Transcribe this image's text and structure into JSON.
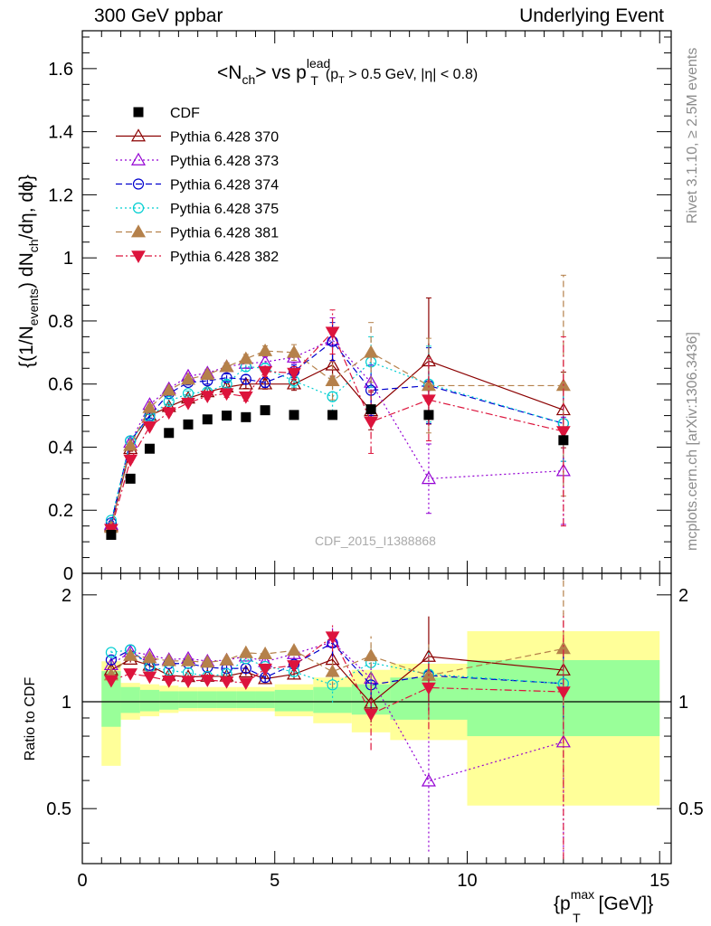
{
  "header": {
    "left": "300 GeV ppbar",
    "right": "Underlying Event"
  },
  "side": {
    "rivet": "Rivet 3.1.10, ≥ 2.5M events",
    "mcplots": "mcplots.cern.ch [arXiv:1306.3436]"
  },
  "chart_data": {
    "type": "scatter",
    "title_main": "<N",
    "title_full": "<Nch> vs pT lead (pT > 0.5 GeV, |η| < 0.8)",
    "title_parts": {
      "a": "<N",
      "sub_ch": "ch",
      "b": "> vs p",
      "sup_lead": "lead",
      "sub_T": "T",
      "c": "(p",
      "d": " > 0.5 GeV, |η| < 0.8)"
    },
    "ylabel": "{(1/Nevents) dNch/dη, dϕ}",
    "ylabel_parts": {
      "a": "{(1/N",
      "sub_events": "events",
      "b": ") dN",
      "sub_ch": "ch",
      "c": "/dη, dϕ}"
    },
    "xlabel": "{pT max [GeV]}",
    "xlabel_parts": {
      "a": "{p",
      "sup_max": "max",
      "sub_T": "T",
      "b": " [GeV]}"
    },
    "ratio_ylabel": "Ratio to CDF",
    "watermark": "CDF_2015_I1388868",
    "xlim": [
      0,
      15.3
    ],
    "ylim": [
      0,
      1.72
    ],
    "ratio_ylim": [
      0.35,
      2.3
    ],
    "ratio_log": true,
    "x_ticks": [
      0,
      5,
      10,
      15
    ],
    "y_ticks": [
      0.2,
      0.4,
      0.6,
      0.8,
      1,
      1.2,
      1.4,
      1.6
    ],
    "y_ticks_visible": [
      "0",
      "0.2",
      "0.4",
      "0.6",
      "0.8",
      "1",
      "1.2",
      "1.4",
      "1.6"
    ],
    "ratio_ticks": [
      0.5,
      1,
      2
    ],
    "legend_position": "top-left",
    "x": [
      0.75,
      1.25,
      1.75,
      2.25,
      2.75,
      3.25,
      3.75,
      4.25,
      4.75,
      5.5,
      6.5,
      7.5,
      9.0,
      12.5
    ],
    "data": {
      "name": "CDF",
      "values": [
        0.122,
        0.3,
        0.395,
        0.445,
        0.472,
        0.488,
        0.5,
        0.495,
        0.517,
        0.502,
        0.502,
        0.52,
        0.502,
        0.422
      ]
    },
    "band_edges": [
      0.5,
      1.0,
      1.5,
      2.0,
      2.5,
      3.0,
      3.5,
      4.0,
      4.5,
      5.0,
      6.0,
      7.0,
      8.0,
      10.0,
      15.0
    ],
    "band_inner": [
      [
        0.85,
        1.22
      ],
      [
        0.93,
        1.1
      ],
      [
        0.94,
        1.08
      ],
      [
        0.95,
        1.07
      ],
      [
        0.96,
        1.07
      ],
      [
        0.96,
        1.07
      ],
      [
        0.96,
        1.07
      ],
      [
        0.96,
        1.07
      ],
      [
        0.96,
        1.07
      ],
      [
        0.94,
        1.08
      ],
      [
        0.93,
        1.1
      ],
      [
        0.92,
        1.12
      ],
      [
        0.89,
        1.17
      ],
      [
        0.8,
        1.31
      ]
    ],
    "band_outer": [
      [
        0.66,
        1.3
      ],
      [
        0.89,
        1.13
      ],
      [
        0.91,
        1.12
      ],
      [
        0.93,
        1.11
      ],
      [
        0.94,
        1.1
      ],
      [
        0.94,
        1.1
      ],
      [
        0.94,
        1.1
      ],
      [
        0.94,
        1.1
      ],
      [
        0.94,
        1.1
      ],
      [
        0.91,
        1.12
      ],
      [
        0.87,
        1.17
      ],
      [
        0.82,
        1.23
      ],
      [
        0.78,
        1.28
      ],
      [
        0.51,
        1.58
      ]
    ],
    "series": [
      {
        "name": "Pythia 6.428 370",
        "color": "#8b0000",
        "dash": "",
        "marker": "tri-open",
        "values": [
          0.15,
          0.395,
          0.5,
          0.528,
          0.555,
          0.575,
          0.59,
          0.6,
          0.6,
          0.6,
          0.66,
          0.515,
          0.673,
          0.518
        ],
        "errors": [
          0.005,
          0.008,
          0.008,
          0.008,
          0.008,
          0.01,
          0.012,
          0.014,
          0.016,
          0.02,
          0.035,
          0.06,
          0.2,
          0.12
        ]
      },
      {
        "name": "Pythia 6.428 373",
        "color": "#9400d3",
        "dash": "2,3",
        "marker": "tri-open",
        "values": [
          0.155,
          0.415,
          0.535,
          0.585,
          0.625,
          0.635,
          0.655,
          0.665,
          0.67,
          0.685,
          0.74,
          0.605,
          0.3,
          0.325
        ],
        "errors": [
          0.005,
          0.008,
          0.008,
          0.008,
          0.008,
          0.01,
          0.012,
          0.014,
          0.016,
          0.02,
          0.07,
          0.1,
          0.11,
          0.17
        ]
      },
      {
        "name": "Pythia 6.428 374",
        "color": "#0000cd",
        "dash": "7,4",
        "marker": "circ-open",
        "values": [
          0.16,
          0.42,
          0.5,
          0.57,
          0.605,
          0.61,
          0.62,
          0.615,
          0.605,
          0.64,
          0.735,
          0.58,
          0.595,
          0.475
        ],
        "errors": [
          0.005,
          0.008,
          0.008,
          0.008,
          0.008,
          0.01,
          0.012,
          0.014,
          0.016,
          0.02,
          0.06,
          0.08,
          0.12,
          0.12
        ]
      },
      {
        "name": "Pythia 6.428 375",
        "color": "#00ced1",
        "dash": "2,3",
        "marker": "circ-open",
        "values": [
          0.168,
          0.42,
          0.495,
          0.545,
          0.57,
          0.575,
          0.6,
          0.655,
          0.65,
          0.61,
          0.56,
          0.67,
          0.6,
          0.475
        ],
        "errors": [
          0.005,
          0.008,
          0.008,
          0.008,
          0.008,
          0.01,
          0.012,
          0.014,
          0.016,
          0.02,
          0.06,
          0.08,
          0.12,
          0.12
        ]
      },
      {
        "name": "Pythia 6.428 381",
        "color": "#b5814b",
        "dash": "7,4",
        "marker": "tri-fill",
        "values": [
          0.145,
          0.405,
          0.525,
          0.58,
          0.615,
          0.63,
          0.655,
          0.68,
          0.705,
          0.7,
          0.61,
          0.7,
          0.595,
          0.595
        ],
        "errors": [
          0.005,
          0.008,
          0.008,
          0.008,
          0.008,
          0.01,
          0.012,
          0.014,
          0.016,
          0.025,
          0.06,
          0.095,
          0.15,
          0.35
        ]
      },
      {
        "name": "Pythia 6.428 382",
        "color": "#dc143c",
        "dash": "8,3,2,3",
        "marker": "tri-down-fill",
        "values": [
          0.14,
          0.36,
          0.465,
          0.51,
          0.54,
          0.562,
          0.57,
          0.56,
          0.64,
          0.635,
          0.765,
          0.48,
          0.55,
          0.45
        ],
        "errors": [
          0.005,
          0.008,
          0.008,
          0.008,
          0.008,
          0.01,
          0.012,
          0.014,
          0.016,
          0.02,
          0.07,
          0.1,
          0.13,
          0.3
        ]
      }
    ]
  }
}
